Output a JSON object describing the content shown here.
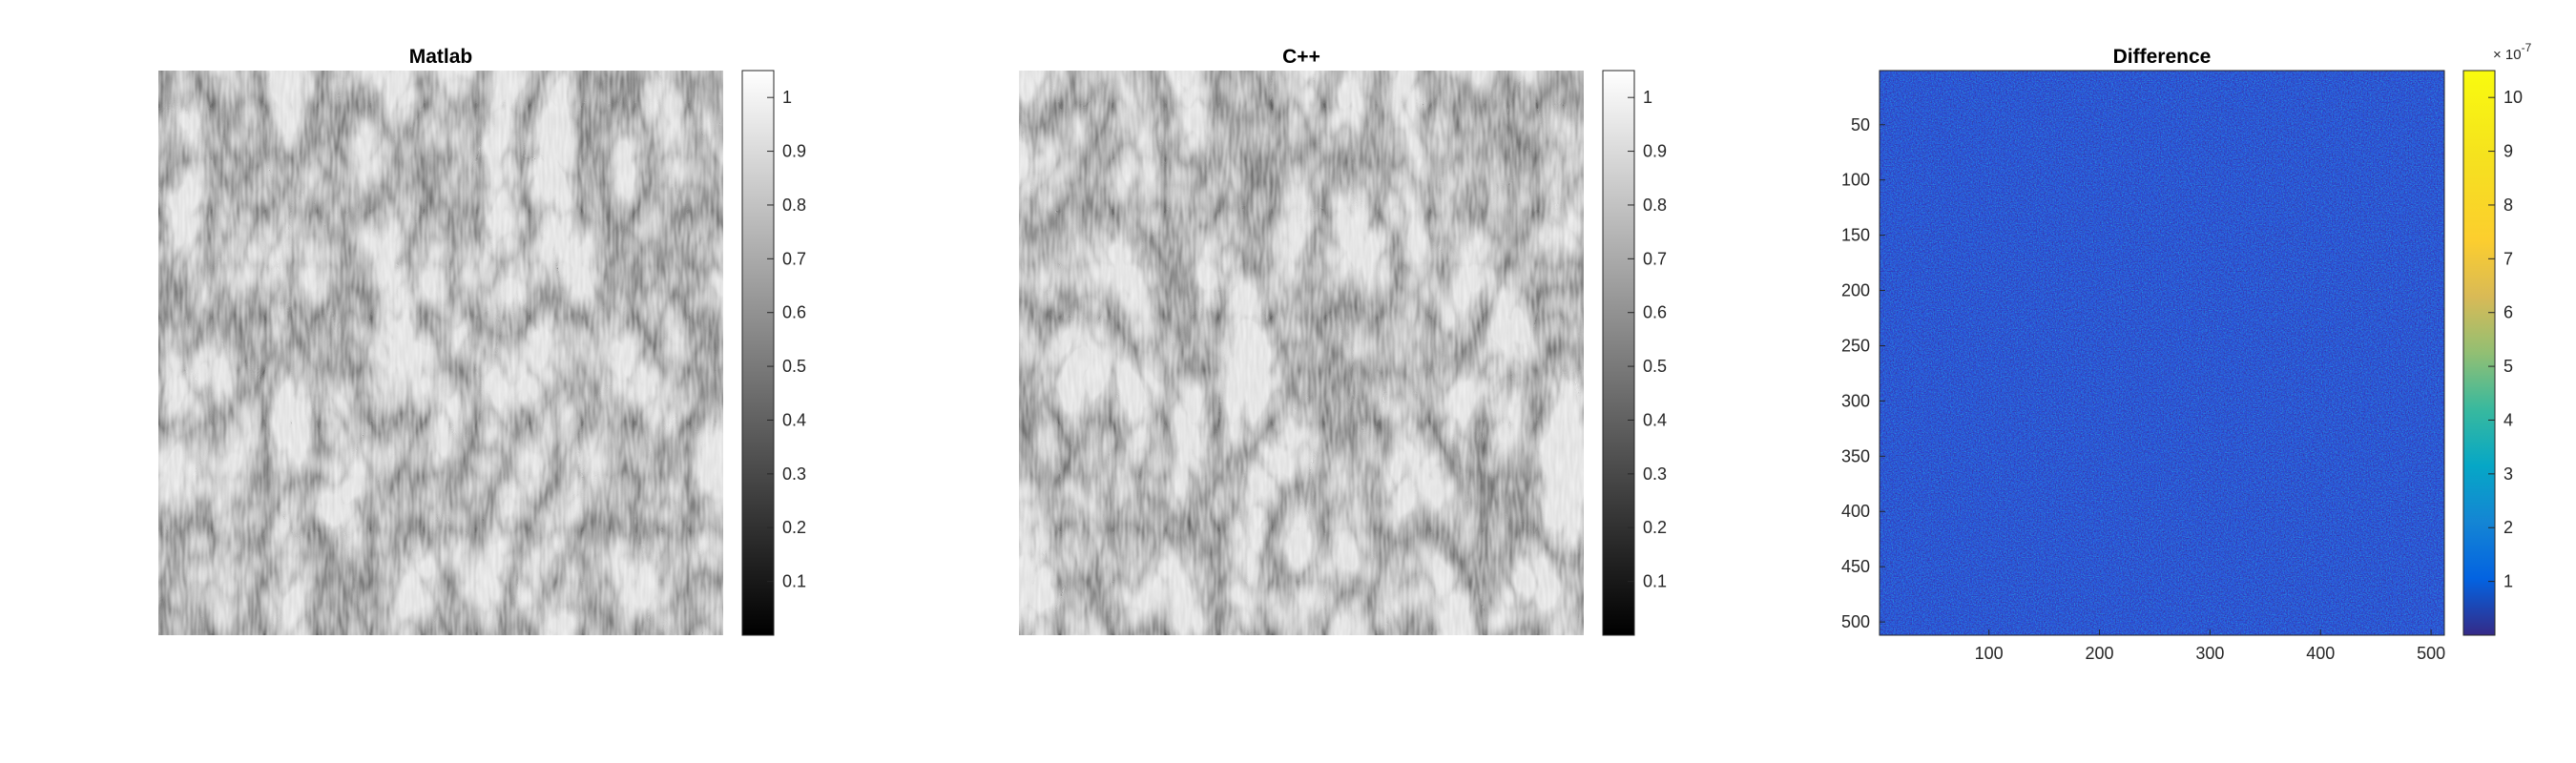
{
  "chart_data": [
    {
      "type": "heatmap",
      "title": "Matlab",
      "colormap": "gray",
      "axes_visible": false,
      "grid": false,
      "colorbar": {
        "range": [
          0,
          1.05
        ],
        "ticks": [
          0.1,
          0.2,
          0.3,
          0.4,
          0.5,
          0.6,
          0.7,
          0.8,
          0.9,
          1
        ],
        "tick_labels": [
          "0.1",
          "0.2",
          "0.3",
          "0.4",
          "0.5",
          "0.6",
          "0.7",
          "0.8",
          "0.9",
          "1"
        ]
      }
    },
    {
      "type": "heatmap",
      "title": "C++",
      "colormap": "gray",
      "axes_visible": false,
      "grid": false,
      "colorbar": {
        "range": [
          0,
          1.05
        ],
        "ticks": [
          0.1,
          0.2,
          0.3,
          0.4,
          0.5,
          0.6,
          0.7,
          0.8,
          0.9,
          1
        ],
        "tick_labels": [
          "0.1",
          "0.2",
          "0.3",
          "0.4",
          "0.5",
          "0.6",
          "0.7",
          "0.8",
          "0.9",
          "1"
        ]
      }
    },
    {
      "type": "heatmap",
      "title": "Difference",
      "colormap": "parula",
      "grid": false,
      "xlim": [
        1,
        512
      ],
      "ylim": [
        1,
        512
      ],
      "xticks": [
        100,
        200,
        300,
        400,
        500
      ],
      "xtick_labels": [
        "100",
        "200",
        "300",
        "400",
        "500"
      ],
      "yticks": [
        50,
        100,
        150,
        200,
        250,
        300,
        350,
        400,
        450,
        500
      ],
      "ytick_labels": [
        "50",
        "100",
        "150",
        "200",
        "250",
        "300",
        "350",
        "400",
        "450",
        "500"
      ],
      "colorbar": {
        "range": [
          0,
          10.5
        ],
        "ticks": [
          1,
          2,
          3,
          4,
          5,
          6,
          7,
          8,
          9,
          10
        ],
        "tick_labels": [
          "1",
          "2",
          "3",
          "4",
          "5",
          "6",
          "7",
          "8",
          "9",
          "10"
        ],
        "exponent_label": "× 10",
        "exponent_power": "-7"
      }
    }
  ]
}
